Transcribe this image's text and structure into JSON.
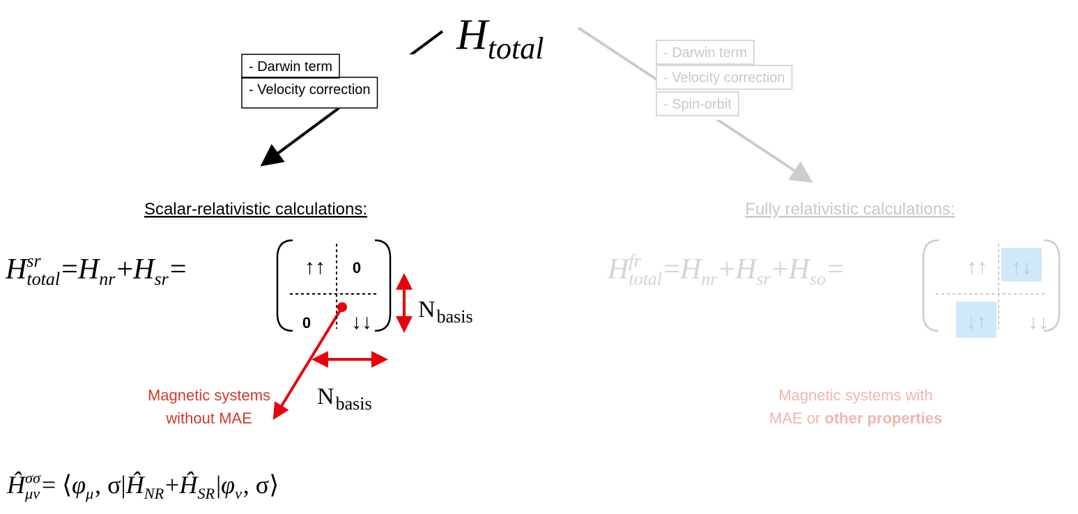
{
  "top": {
    "base": "H",
    "sub": "total"
  },
  "left": {
    "terms": [
      "- Darwin term",
      "- Velocity correction"
    ],
    "heading": "Scalar-relativistic calculations:",
    "equation": [
      {
        "base": "H",
        "sup": "sr",
        "sub": "total"
      },
      " = ",
      {
        "base": "H",
        "sub": "nr"
      },
      " + ",
      {
        "base": "H",
        "sub": "sr"
      },
      " ="
    ],
    "matrix": [
      "↑↑",
      "0",
      "0",
      "↓↓"
    ],
    "dimension_labels": [
      {
        "base": "N",
        "sub": "basis"
      },
      {
        "base": "N",
        "sub": "basis"
      }
    ],
    "note": [
      "Magnetic systems",
      "without MAE"
    ],
    "element_equation": [
      {
        "base": "Ĥ",
        "sup": "σσ",
        "sub": "μν"
      },
      " = ⟨",
      {
        "base": "φ",
        "sub": "μ"
      },
      ", σ|",
      {
        "base": "Ĥ",
        "sub": "NR"
      },
      " + ",
      {
        "base": "Ĥ",
        "sub": "SR"
      },
      "|",
      {
        "base": "φ",
        "sub": "ν"
      },
      ", σ⟩"
    ]
  },
  "right": {
    "terms": [
      "- Darwin term",
      "- Velocity correction",
      "- Spin-orbit"
    ],
    "heading": "Fully relativistic calculations:",
    "equation": [
      {
        "base": "H",
        "sup": "fr",
        "sub": "total"
      },
      " = ",
      {
        "base": "H",
        "sub": "nr"
      },
      " + ",
      {
        "base": "H",
        "sub": "sr"
      },
      " + ",
      {
        "base": "H",
        "sub": "so"
      },
      " ="
    ],
    "matrix": [
      "↑↑",
      "↑↓",
      "↓↑",
      "↓↓"
    ],
    "note": [
      [
        "Magnetic systems with"
      ],
      [
        "MAE or ",
        "other properties"
      ]
    ]
  }
}
